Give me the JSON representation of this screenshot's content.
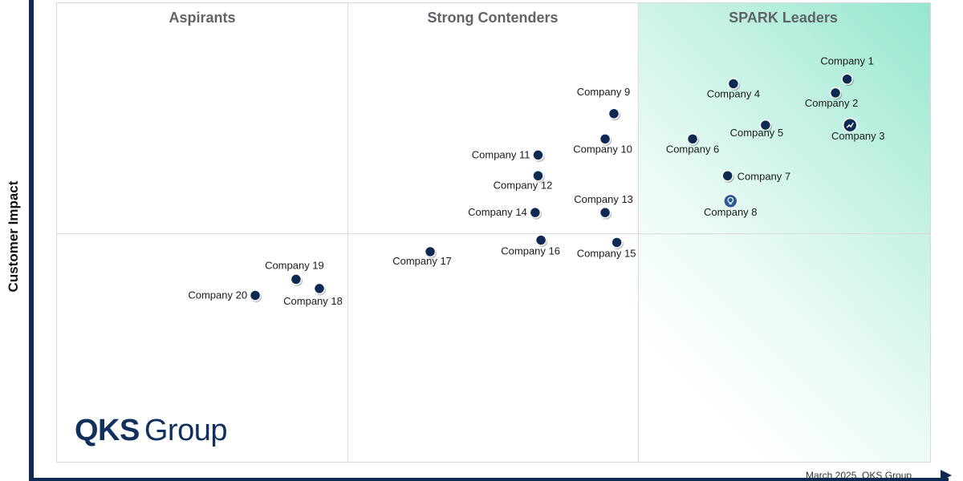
{
  "chart_data": {
    "type": "scatter",
    "title": "",
    "xlabel": "",
    "ylabel": "Customer Impact",
    "xlim": [
      0,
      3
    ],
    "ylim": [
      0,
      2
    ],
    "quadrants": [
      "Aspirants",
      "Strong Contenders",
      "SPARK Leaders"
    ],
    "points": [
      {
        "label": "Company 1",
        "x": 2.71,
        "y": 1.67,
        "marker": "dot"
      },
      {
        "label": "Company 2",
        "x": 2.67,
        "y": 1.61,
        "marker": "dot"
      },
      {
        "label": "Company 3",
        "x": 2.72,
        "y": 1.47,
        "marker": "trend"
      },
      {
        "label": "Company 4",
        "x": 2.32,
        "y": 1.65,
        "marker": "dot"
      },
      {
        "label": "Company 5",
        "x": 2.43,
        "y": 1.47,
        "marker": "dot"
      },
      {
        "label": "Company 6",
        "x": 2.18,
        "y": 1.41,
        "marker": "dot"
      },
      {
        "label": "Company 7",
        "x": 2.3,
        "y": 1.25,
        "marker": "dot"
      },
      {
        "label": "Company 8",
        "x": 2.31,
        "y": 1.14,
        "marker": "bulb"
      },
      {
        "label": "Company 9",
        "x": 1.91,
        "y": 1.52,
        "marker": "dot"
      },
      {
        "label": "Company 10",
        "x": 1.88,
        "y": 1.41,
        "marker": "dot"
      },
      {
        "label": "Company 11",
        "x": 1.65,
        "y": 1.34,
        "marker": "dot"
      },
      {
        "label": "Company 12",
        "x": 1.65,
        "y": 1.25,
        "marker": "dot"
      },
      {
        "label": "Company 13",
        "x": 1.88,
        "y": 1.09,
        "marker": "dot"
      },
      {
        "label": "Company 14",
        "x": 1.64,
        "y": 1.09,
        "marker": "dot"
      },
      {
        "label": "Company 15",
        "x": 1.92,
        "y": 0.96,
        "marker": "dot"
      },
      {
        "label": "Company 16",
        "x": 1.66,
        "y": 0.97,
        "marker": "dot"
      },
      {
        "label": "Company 17",
        "x": 1.28,
        "y": 0.92,
        "marker": "dot"
      },
      {
        "label": "Company 18",
        "x": 0.9,
        "y": 0.76,
        "marker": "dot"
      },
      {
        "label": "Company 19",
        "x": 0.82,
        "y": 0.8,
        "marker": "dot"
      },
      {
        "label": "Company 20",
        "x": 0.68,
        "y": 0.73,
        "marker": "dot"
      }
    ]
  },
  "logo": {
    "bold": "QKS",
    "light": "Group"
  },
  "footer": "March 2025, QKS Group",
  "colors": {
    "marker": "#0e2a52",
    "bulb_marker": "#2b5c93",
    "leader_gradient": "#94e6cf"
  }
}
